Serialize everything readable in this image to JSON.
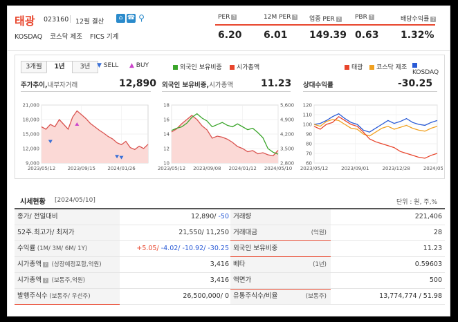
{
  "company": {
    "name": "태광",
    "code": "023160",
    "settlement": "12월 결산",
    "market": "KOSDAQ",
    "sector": "코스닥 제조",
    "fics": "FICS 기계"
  },
  "metrics": [
    {
      "label": "PER",
      "value": "6.20"
    },
    {
      "label": "12M PER",
      "value": "6.01"
    },
    {
      "label": "업종 PER",
      "value": "149.39"
    },
    {
      "label": "PBR",
      "value": "0.63"
    },
    {
      "label": "배당수익률",
      "value": "1.32%"
    }
  ],
  "tabs": [
    "3개월",
    "1년",
    "3년"
  ],
  "active_tab": "1년",
  "legend_left": {
    "sell": "SELL",
    "buy": "BUY"
  },
  "legend_mid": [
    {
      "label": "외국인 보유비중",
      "color": "#3aa52a"
    },
    {
      "label": "시가총액",
      "color": "#e8452c"
    }
  ],
  "legend_right": [
    {
      "label": "태광",
      "color": "#e8452c"
    },
    {
      "label": "코스닥 제조",
      "color": "#f0a020"
    },
    {
      "label": "KOSDAQ",
      "color": "#2a5bd6"
    }
  ],
  "charts": {
    "price": {
      "title": "주가추이,",
      "subtitle": "내부자거래",
      "value": "12,890"
    },
    "foreign": {
      "title": "외국인 보유비중,",
      "subtitle": "시가총액",
      "value": "11.23"
    },
    "relative": {
      "title": "상대수익률",
      "value": "-30.25"
    }
  },
  "chart_data": [
    {
      "type": "line",
      "name": "주가추이",
      "x_ticks": [
        "2023/05/12",
        "2023/09/15",
        "2024/01/26"
      ],
      "y_ticks": [
        "21,000",
        "18,000",
        "15,000",
        "12,000",
        "9,000"
      ],
      "ylim": [
        9000,
        21000
      ],
      "series": [
        {
          "values": [
            16500,
            16000,
            17000,
            16500,
            18000,
            17000,
            16000,
            18500,
            19800,
            19000,
            18200,
            17200,
            16500,
            15800,
            15200,
            14500,
            14000,
            13200,
            12800,
            13500,
            12200,
            11800,
            12500,
            12000,
            12890
          ]
        }
      ],
      "markers": [
        {
          "kind": "sell",
          "x_index": 2,
          "y": 13500
        },
        {
          "kind": "buy",
          "x_index": 8,
          "y": 17000
        },
        {
          "kind": "sell",
          "x_index": 17,
          "y": 10400
        },
        {
          "kind": "sell",
          "x_index": 18,
          "y": 10200
        }
      ]
    },
    {
      "type": "line",
      "name": "외국인 보유비중",
      "x_ticks": [
        "2023/05/12",
        "2023/09/08",
        "2024/01/12",
        "2024/05/10"
      ],
      "y_left_ticks": [
        "18",
        "16",
        "14",
        "12",
        "10"
      ],
      "y_right_ticks": [
        "5,600",
        "4,900",
        "4,200",
        "3,500",
        "2,800"
      ],
      "ylim_left": [
        10,
        18
      ],
      "ylim_right": [
        2800,
        5600
      ],
      "series": [
        {
          "name": "외국인 보유비중",
          "values": [
            14.5,
            14.8,
            15.0,
            15.5,
            16.3,
            16.8,
            16.2,
            15.8,
            15.0,
            15.3,
            15.6,
            15.2,
            15.0,
            15.4,
            15.0,
            14.6,
            14.8,
            14.2,
            13.5,
            12.0,
            11.5,
            11.23
          ]
        },
        {
          "name": "시가총액",
          "values": [
            4300,
            4450,
            4700,
            4900,
            5100,
            4900,
            4600,
            4400,
            4000,
            4100,
            4050,
            3950,
            3800,
            3600,
            3500,
            3350,
            3400,
            3250,
            3300,
            3200,
            3150,
            3416
          ]
        }
      ]
    },
    {
      "type": "line",
      "name": "상대수익률",
      "x_ticks": [
        "2023/05/12",
        "2023/09/01",
        "2023/12/28",
        "2024/05/03"
      ],
      "y_ticks": [
        "120",
        "110",
        "100",
        "90",
        "80",
        "70",
        "60"
      ],
      "ylim": [
        60,
        120
      ],
      "series": [
        {
          "name": "태광",
          "values": [
            98,
            95,
            100,
            102,
            108,
            104,
            100,
            98,
            92,
            85,
            82,
            80,
            78,
            76,
            72,
            70,
            68,
            66,
            65,
            68,
            70
          ]
        },
        {
          "name": "코스닥 제조",
          "values": [
            100,
            98,
            103,
            105,
            104,
            100,
            96,
            95,
            90,
            88,
            92,
            96,
            98,
            95,
            97,
            99,
            96,
            94,
            93,
            96,
            98
          ]
        },
        {
          "name": "KOSDAQ",
          "values": [
            100,
            101,
            104,
            108,
            111,
            106,
            102,
            100,
            94,
            92,
            96,
            100,
            104,
            101,
            103,
            106,
            102,
            100,
            99,
            102,
            104
          ]
        }
      ]
    }
  ],
  "table": {
    "title": "시세현황",
    "date": "[2024/05/10]",
    "unit": "단위 : 원, 주,%",
    "left": [
      {
        "label": "종가/ 전일대비",
        "value_main": "12,890/",
        "value_change": " -50"
      },
      {
        "label": "52주.최고가/ 최저가",
        "value": "21,550/ 11,250"
      },
      {
        "label": "수익률",
        "sub": "(1M/ 3M/ 6M/ 1Y)",
        "returns": [
          "+5.05",
          "-4.02",
          "-10.92",
          "-30.25"
        ]
      },
      {
        "label": "시가총액",
        "sub": "(상장예정포함,억원)",
        "value": "3,416"
      },
      {
        "label": "시가총액",
        "sub": "(보통주,억원)",
        "value": "3,416"
      },
      {
        "label": "발행주식수",
        "sub": "(보통주/ 우선주)",
        "value": "26,500,000/ 0"
      }
    ],
    "right": [
      {
        "label": "거래량",
        "value": "221,406"
      },
      {
        "label": "거래대금",
        "sub": "(억원)",
        "value": "28"
      },
      {
        "label": "외국인 보유비중",
        "value": "11.23"
      },
      {
        "label": "베타",
        "sub": "(1년)",
        "value": "0.59603"
      },
      {
        "label": "액면가",
        "value": "500"
      },
      {
        "label": "유통주식수/비율",
        "sub": "(보통주)",
        "value": "13,774,774 / 51.98"
      }
    ]
  }
}
